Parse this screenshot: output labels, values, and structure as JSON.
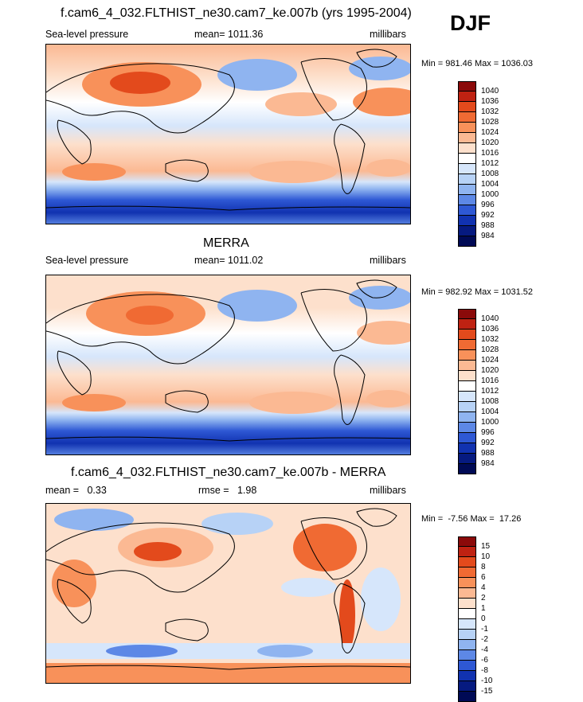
{
  "season_label": "DJF",
  "panels": [
    {
      "title": "f.cam6_4_032.FLTHIST_ne30.cam7_ke.007b (yrs 1995-2004)",
      "left_label": "Sea-level pressure",
      "center_label": "mean= 1011.36",
      "right_label": "millibars",
      "minmax": "Min = 981.46 Max = 1036.03",
      "colorbar": {
        "levels": [
          "1040",
          "1036",
          "1032",
          "1028",
          "1024",
          "1020",
          "1016",
          "1012",
          "1008",
          "1004",
          "1000",
          "996",
          "992",
          "988",
          "984"
        ],
        "colors": [
          "#8b0a0a",
          "#bf2212",
          "#e34a1c",
          "#f06a33",
          "#f8915a",
          "#fbb993",
          "#fde0cc",
          "#ffffff",
          "#d6e6fb",
          "#b7d2f6",
          "#8fb4f0",
          "#5d88e6",
          "#2e58d4",
          "#1132b0",
          "#061a80",
          "#000a55"
        ]
      }
    },
    {
      "title": "MERRA",
      "left_label": "Sea-level pressure",
      "center_label": "mean= 1011.02",
      "right_label": "millibars",
      "minmax": "Min = 982.92 Max = 1031.52",
      "colorbar": {
        "levels": [
          "1040",
          "1036",
          "1032",
          "1028",
          "1024",
          "1020",
          "1016",
          "1012",
          "1008",
          "1004",
          "1000",
          "996",
          "992",
          "988",
          "984"
        ],
        "colors": [
          "#8b0a0a",
          "#bf2212",
          "#e34a1c",
          "#f06a33",
          "#f8915a",
          "#fbb993",
          "#fde0cc",
          "#ffffff",
          "#d6e6fb",
          "#b7d2f6",
          "#8fb4f0",
          "#5d88e6",
          "#2e58d4",
          "#1132b0",
          "#061a80",
          "#000a55"
        ]
      }
    },
    {
      "title": "f.cam6_4_032.FLTHIST_ne30.cam7_ke.007b - MERRA",
      "left_label": "mean =   0.33",
      "center_label": "rmse =   1.98",
      "right_label": "millibars",
      "minmax": "Min =  -7.56 Max =  17.26",
      "colorbar": {
        "levels": [
          "15",
          "10",
          "8",
          "6",
          "4",
          "2",
          "1",
          "0",
          "-1",
          "-2",
          "-4",
          "-6",
          "-8",
          "-10",
          "-15"
        ],
        "colors": [
          "#8b0a0a",
          "#bf2212",
          "#e34a1c",
          "#f06a33",
          "#f8915a",
          "#fbb993",
          "#fde0cc",
          "#ffffff",
          "#d6e6fb",
          "#b7d2f6",
          "#8fb4f0",
          "#5d88e6",
          "#2e58d4",
          "#1132b0",
          "#061a80",
          "#000a55"
        ]
      }
    }
  ]
}
